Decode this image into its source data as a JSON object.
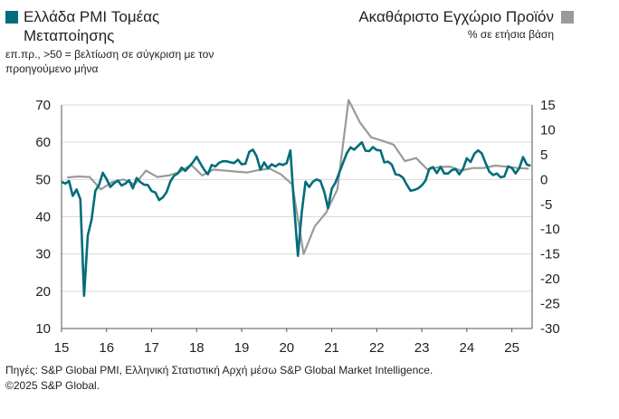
{
  "legend": {
    "left_title": "Ελλάδα PMI Τομέας Μεταποίησης",
    "left_note": "επ.πρ., >50 = βελτίωση σε σύγκριση με τον προηγούμενο μήνα",
    "right_title": "Ακαθάριστο Εγχώριο Προϊόν",
    "right_note": "% σε ετήσια βάση"
  },
  "footer": {
    "source": "Πηγές: S&P Global PMI, Ελληνική Στατιστική Αρχή μέσω S&P Global Market Intelligence.",
    "copyright": "©2025 S&P Global."
  },
  "chart_data": {
    "type": "line",
    "x_ticks": [
      "15",
      "16",
      "17",
      "18",
      "19",
      "20",
      "21",
      "22",
      "23",
      "24",
      "25"
    ],
    "x_range": [
      2015.0,
      2025.45
    ],
    "left_axis": {
      "ylim": [
        10,
        70
      ],
      "ticks": [
        10,
        20,
        30,
        40,
        50,
        60,
        70
      ]
    },
    "right_axis": {
      "ylim": [
        -30,
        15
      ],
      "ticks": [
        -30,
        -25,
        -20,
        -15,
        -10,
        -5,
        0,
        5,
        10,
        15
      ]
    },
    "grid": true,
    "colors": {
      "pmi": "#006d7c",
      "gdp": "#9a9a9a"
    },
    "series": [
      {
        "name": "Ελλάδα PMI Τομέας Μεταποίησης",
        "axis": "left",
        "x": [
          2015.0,
          2015.083,
          2015.167,
          2015.25,
          2015.333,
          2015.417,
          2015.5,
          2015.583,
          2015.667,
          2015.75,
          2015.833,
          2015.917,
          2016.0,
          2016.083,
          2016.167,
          2016.25,
          2016.333,
          2016.417,
          2016.5,
          2016.583,
          2016.667,
          2016.75,
          2016.833,
          2016.917,
          2017.0,
          2017.083,
          2017.167,
          2017.25,
          2017.333,
          2017.417,
          2017.5,
          2017.583,
          2017.667,
          2017.75,
          2017.833,
          2017.917,
          2018.0,
          2018.083,
          2018.167,
          2018.25,
          2018.333,
          2018.417,
          2018.5,
          2018.583,
          2018.667,
          2018.75,
          2018.833,
          2018.917,
          2019.0,
          2019.083,
          2019.167,
          2019.25,
          2019.333,
          2019.417,
          2019.5,
          2019.583,
          2019.667,
          2019.75,
          2019.833,
          2019.917,
          2020.0,
          2020.083,
          2020.167,
          2020.25,
          2020.333,
          2020.417,
          2020.5,
          2020.583,
          2020.667,
          2020.75,
          2020.833,
          2020.917,
          2021.0,
          2021.083,
          2021.167,
          2021.25,
          2021.333,
          2021.417,
          2021.5,
          2021.583,
          2021.667,
          2021.75,
          2021.833,
          2021.917,
          2022.0,
          2022.083,
          2022.167,
          2022.25,
          2022.333,
          2022.417,
          2022.5,
          2022.583,
          2022.667,
          2022.75,
          2022.833,
          2022.917,
          2023.0,
          2023.083,
          2023.167,
          2023.25,
          2023.333,
          2023.417,
          2023.5,
          2023.583,
          2023.667,
          2023.75,
          2023.833,
          2023.917,
          2024.0,
          2024.083,
          2024.167,
          2024.25,
          2024.333,
          2024.417,
          2024.5,
          2024.583,
          2024.667,
          2024.75,
          2024.833,
          2024.917,
          2025.0,
          2025.083,
          2025.167,
          2025.25,
          2025.333,
          2025.417
        ],
        "values": [
          49.4,
          48.9,
          49.6,
          45.6,
          47.3,
          44.7,
          18.8,
          35.0,
          39.2,
          46.9,
          48.6,
          51.8,
          50.1,
          48.0,
          49.0,
          49.7,
          48.4,
          48.9,
          49.8,
          47.6,
          50.4,
          49.3,
          48.6,
          48.5,
          46.9,
          46.5,
          44.5,
          45.2,
          46.6,
          49.5,
          51.0,
          51.6,
          53.2,
          52.3,
          53.4,
          54.6,
          56.1,
          54.3,
          52.6,
          51.4,
          53.9,
          53.5,
          54.5,
          54.9,
          54.9,
          54.6,
          54.4,
          55.3,
          54.1,
          54.2,
          57.4,
          58.0,
          56.2,
          52.6,
          54.6,
          53.0,
          54.1,
          53.5,
          54.2,
          53.9,
          54.4,
          57.8,
          42.5,
          29.5,
          41.1,
          49.4,
          48.0,
          49.4,
          50.0,
          49.6,
          46.7,
          42.3,
          47.5,
          49.2,
          51.8,
          54.4,
          57.0,
          58.6,
          58.0,
          59.0,
          60.0,
          57.7,
          57.6,
          58.7,
          57.9,
          57.8,
          54.6,
          54.8,
          54.0,
          51.4,
          51.2,
          50.5,
          48.6,
          47.0,
          47.2,
          47.6,
          48.4,
          49.7,
          52.9,
          53.3,
          51.7,
          53.4,
          51.6,
          51.6,
          52.5,
          52.8,
          51.4,
          52.9,
          55.7,
          54.7,
          56.9,
          57.8,
          57.0,
          54.4,
          52.1,
          51.2,
          51.6,
          50.6,
          50.8,
          53.5,
          53.1,
          51.6,
          53.1,
          56.0,
          54.0,
          53.7
        ]
      },
      {
        "name": "Ακαθάριστο Εγχώριο Προϊόν",
        "axis": "right",
        "x": [
          2015.125,
          2015.375,
          2015.625,
          2015.875,
          2016.125,
          2016.375,
          2016.625,
          2016.875,
          2017.125,
          2017.375,
          2017.625,
          2017.875,
          2018.125,
          2018.375,
          2018.625,
          2018.875,
          2019.125,
          2019.375,
          2019.625,
          2019.875,
          2020.125,
          2020.375,
          2020.625,
          2020.875,
          2021.125,
          2021.375,
          2021.625,
          2021.875,
          2022.125,
          2022.375,
          2022.625,
          2022.875,
          2023.125,
          2023.375,
          2023.625,
          2023.875,
          2024.125,
          2024.375,
          2024.625,
          2024.875,
          2025.125,
          2025.375
        ],
        "values": [
          0.4,
          0.6,
          0.5,
          -2.0,
          -0.5,
          0.0,
          -1.0,
          1.8,
          0.5,
          0.8,
          1.5,
          3.0,
          0.8,
          2.0,
          1.8,
          1.6,
          1.4,
          1.9,
          2.2,
          1.0,
          -1.0,
          -15.0,
          -9.4,
          -6.7,
          -2.0,
          16.0,
          11.5,
          8.5,
          7.8,
          7.0,
          3.7,
          4.3,
          2.0,
          2.5,
          2.6,
          1.8,
          2.3,
          2.3,
          2.8,
          2.6,
          2.3,
          2.2
        ]
      }
    ]
  }
}
